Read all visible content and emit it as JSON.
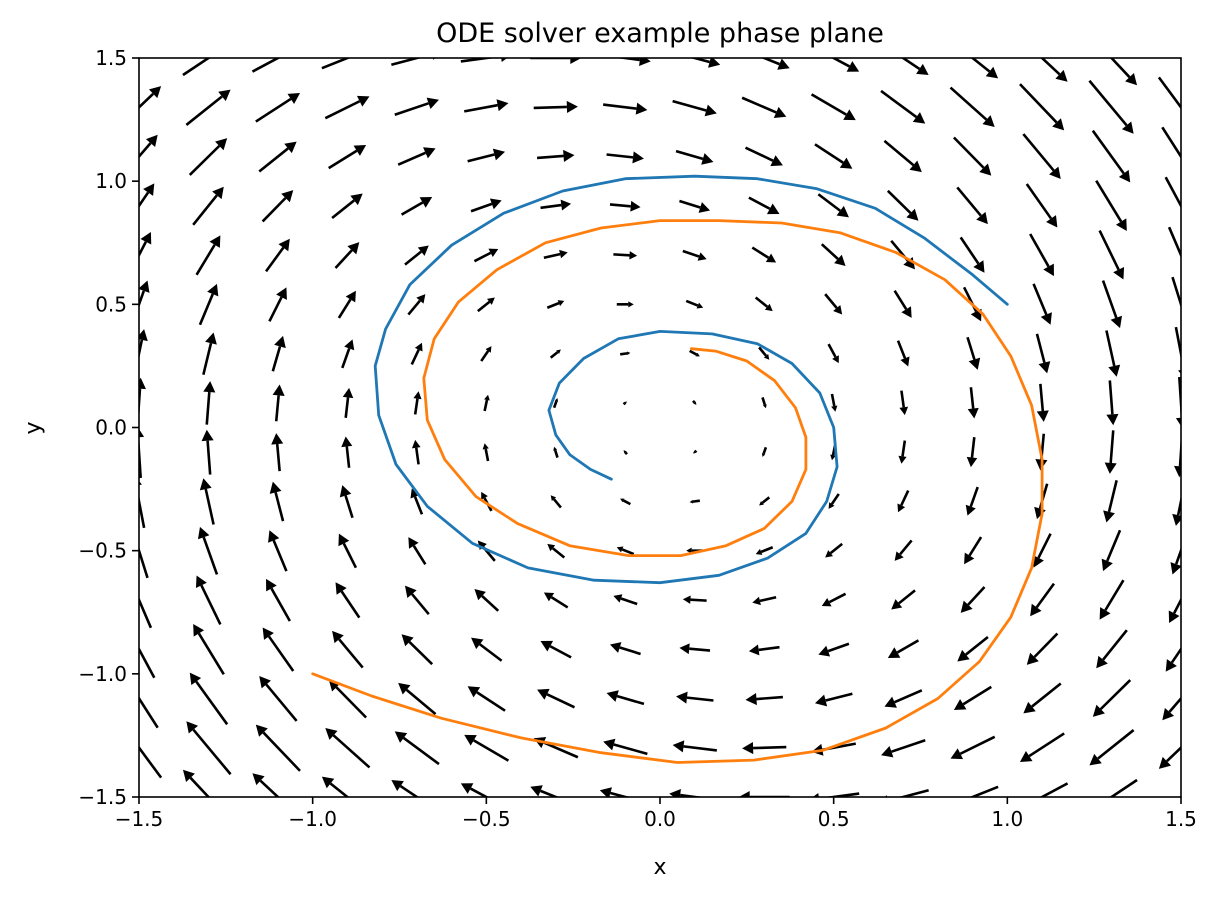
{
  "chart_data": {
    "type": "quiver",
    "title": "ODE solver example phase plane",
    "xlabel": "x",
    "ylabel": "y",
    "xlim": [
      -1.5,
      1.5
    ],
    "ylim": [
      -1.5,
      1.5
    ],
    "x_ticks": [
      -1.5,
      -1.0,
      -0.5,
      0.0,
      0.5,
      1.0,
      1.5
    ],
    "y_ticks": [
      -1.5,
      -1.0,
      -0.5,
      0.0,
      0.5,
      1.0,
      1.5
    ],
    "x_tick_labels": [
      "−1.5",
      "−1.0",
      "−0.5",
      "0.0",
      "0.5",
      "1.0",
      "1.5"
    ],
    "y_tick_labels": [
      "−1.5",
      "−1.0",
      "−0.5",
      "0.0",
      "0.5",
      "1.0",
      "1.5"
    ],
    "grid": false,
    "vector_field": {
      "x_range": [
        -1.5,
        1.5
      ],
      "y_range": [
        -1.5,
        1.5
      ],
      "n_x": 16,
      "n_y": 16,
      "equations": {
        "dx": "y",
        "dy": "-x - 0.2*y"
      },
      "color": "#000000"
    },
    "series": [
      {
        "color": "#1f77b4",
        "points": [
          [
            1.0,
            0.5
          ],
          [
            0.9,
            0.62
          ],
          [
            0.76,
            0.77
          ],
          [
            0.62,
            0.89
          ],
          [
            0.45,
            0.97
          ],
          [
            0.28,
            1.01
          ],
          [
            0.1,
            1.02
          ],
          [
            -0.1,
            1.01
          ],
          [
            -0.28,
            0.96
          ],
          [
            -0.45,
            0.87
          ],
          [
            -0.6,
            0.74
          ],
          [
            -0.72,
            0.58
          ],
          [
            -0.79,
            0.4
          ],
          [
            -0.82,
            0.25
          ],
          [
            -0.81,
            0.05
          ],
          [
            -0.76,
            -0.15
          ],
          [
            -0.67,
            -0.32
          ],
          [
            -0.54,
            -0.47
          ],
          [
            -0.38,
            -0.57
          ],
          [
            -0.19,
            -0.62
          ],
          [
            0.0,
            -0.63
          ],
          [
            0.17,
            -0.6
          ],
          [
            0.31,
            -0.53
          ],
          [
            0.42,
            -0.43
          ],
          [
            0.48,
            -0.3
          ],
          [
            0.51,
            -0.16
          ],
          [
            0.5,
            0.0
          ],
          [
            0.46,
            0.14
          ],
          [
            0.38,
            0.26
          ],
          [
            0.28,
            0.34
          ],
          [
            0.15,
            0.38
          ],
          [
            0.0,
            0.39
          ],
          [
            -0.12,
            0.36
          ],
          [
            -0.22,
            0.28
          ],
          [
            -0.29,
            0.18
          ],
          [
            -0.32,
            0.07
          ],
          [
            -0.3,
            -0.03
          ],
          [
            -0.26,
            -0.11
          ],
          [
            -0.2,
            -0.17
          ],
          [
            -0.14,
            -0.21
          ]
        ]
      },
      {
        "color": "#ff7f0e",
        "points": [
          [
            -1.0,
            -1.0
          ],
          [
            -0.83,
            -1.09
          ],
          [
            -0.63,
            -1.18
          ],
          [
            -0.4,
            -1.26
          ],
          [
            -0.17,
            -1.32
          ],
          [
            0.05,
            -1.36
          ],
          [
            0.27,
            -1.35
          ],
          [
            0.47,
            -1.31
          ],
          [
            0.65,
            -1.22
          ],
          [
            0.8,
            -1.1
          ],
          [
            0.92,
            -0.95
          ],
          [
            1.01,
            -0.77
          ],
          [
            1.07,
            -0.57
          ],
          [
            1.1,
            -0.35
          ],
          [
            1.1,
            -0.13
          ],
          [
            1.07,
            0.09
          ],
          [
            1.01,
            0.29
          ],
          [
            0.93,
            0.46
          ],
          [
            0.82,
            0.6
          ],
          [
            0.68,
            0.71
          ],
          [
            0.52,
            0.79
          ],
          [
            0.35,
            0.83
          ],
          [
            0.17,
            0.84
          ],
          [
            0.0,
            0.84
          ],
          [
            -0.17,
            0.81
          ],
          [
            -0.33,
            0.75
          ],
          [
            -0.47,
            0.64
          ],
          [
            -0.58,
            0.51
          ],
          [
            -0.65,
            0.36
          ],
          [
            -0.68,
            0.2
          ],
          [
            -0.67,
            0.03
          ],
          [
            -0.62,
            -0.13
          ],
          [
            -0.53,
            -0.28
          ],
          [
            -0.41,
            -0.39
          ],
          [
            -0.26,
            -0.48
          ],
          [
            -0.09,
            -0.52
          ],
          [
            0.06,
            -0.52
          ],
          [
            0.19,
            -0.48
          ],
          [
            0.3,
            -0.41
          ],
          [
            0.38,
            -0.3
          ],
          [
            0.42,
            -0.17
          ],
          [
            0.42,
            -0.04
          ],
          [
            0.39,
            0.08
          ],
          [
            0.33,
            0.19
          ],
          [
            0.25,
            0.27
          ],
          [
            0.16,
            0.31
          ],
          [
            0.09,
            0.32
          ]
        ]
      }
    ]
  }
}
